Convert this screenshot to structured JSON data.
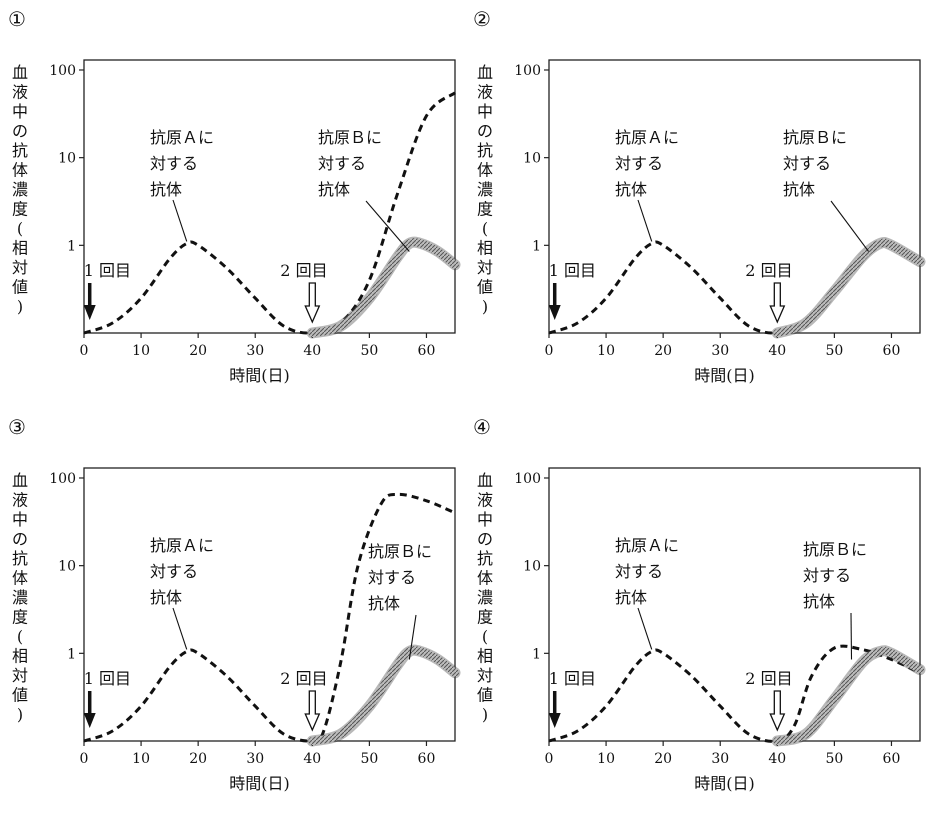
{
  "chart_data": [
    {
      "type": "line",
      "panel_number": "①",
      "ylabel": "血液中の抗体濃度(相対値)",
      "xlabel": "時間(日)",
      "x_ticks": [
        "0",
        "10",
        "20",
        "30",
        "40",
        "50",
        "60"
      ],
      "y_ticks": [
        {
          "value": 1,
          "label": "1"
        },
        {
          "value": 10,
          "label": "10"
        },
        {
          "value": 100,
          "label": "100"
        }
      ],
      "xlim": [
        0,
        65
      ],
      "ylim_log": [
        0.1,
        130
      ],
      "y_scale": "log",
      "annotations": {
        "first_dose": "1 回目",
        "second_dose": "2 回目",
        "antibody_a": [
          "抗原Ａに",
          "対する",
          "抗体"
        ],
        "antibody_b": [
          "抗原Ｂに",
          "対する",
          "抗体"
        ]
      },
      "first_dose_day": 1,
      "second_dose_day": 40,
      "series": [
        {
          "style": "dashed",
          "x": [
            0,
            5,
            10,
            15,
            18,
            20,
            25,
            30,
            35,
            40,
            45,
            50,
            55,
            60,
            65
          ],
          "y": [
            0.1,
            0.13,
            0.25,
            0.7,
            1.05,
            1.0,
            0.55,
            0.25,
            0.12,
            0.1,
            0.13,
            0.4,
            4,
            30,
            55
          ]
        },
        {
          "style": "hatched",
          "x": [
            40,
            45,
            50,
            55,
            57,
            59,
            62,
            65
          ],
          "y": [
            0.1,
            0.12,
            0.25,
            0.75,
            1.05,
            1.05,
            0.85,
            0.6
          ]
        }
      ],
      "label_a_pointer_x": 18,
      "label_b_pointer_x": 57
    },
    {
      "type": "line",
      "panel_number": "②",
      "ylabel": "血液中の抗体濃度(相対値)",
      "xlabel": "時間(日)",
      "x_ticks": [
        "0",
        "10",
        "20",
        "30",
        "40",
        "50",
        "60"
      ],
      "y_ticks": [
        {
          "value": 1,
          "label": "1"
        },
        {
          "value": 10,
          "label": "10"
        },
        {
          "value": 100,
          "label": "100"
        }
      ],
      "xlim": [
        0,
        65
      ],
      "ylim_log": [
        0.1,
        130
      ],
      "y_scale": "log",
      "annotations": {
        "first_dose": "1 回目",
        "second_dose": "2 回目",
        "antibody_a": [
          "抗原Ａに",
          "対する",
          "抗体"
        ],
        "antibody_b": [
          "抗原Ｂに",
          "対する",
          "抗体"
        ]
      },
      "first_dose_day": 1,
      "second_dose_day": 40,
      "series": [
        {
          "style": "dashed",
          "x": [
            0,
            5,
            10,
            15,
            18,
            20,
            25,
            30,
            35,
            40,
            45,
            50,
            55,
            58,
            60,
            65
          ],
          "y": [
            0.1,
            0.13,
            0.25,
            0.7,
            1.05,
            1.0,
            0.55,
            0.25,
            0.12,
            0.1,
            0.13,
            0.3,
            0.75,
            1.05,
            1.0,
            0.65
          ]
        },
        {
          "style": "hatched",
          "x": [
            40,
            45,
            50,
            55,
            58,
            60,
            65
          ],
          "y": [
            0.1,
            0.13,
            0.3,
            0.75,
            1.05,
            1.0,
            0.65
          ]
        }
      ],
      "label_a_pointer_x": 18,
      "label_b_pointer_x": 56
    },
    {
      "type": "line",
      "panel_number": "③",
      "ylabel": "血液中の抗体濃度(相対値)",
      "xlabel": "時間(日)",
      "x_ticks": [
        "0",
        "10",
        "20",
        "30",
        "40",
        "50",
        "60"
      ],
      "y_ticks": [
        {
          "value": 1,
          "label": "1"
        },
        {
          "value": 10,
          "label": "10"
        },
        {
          "value": 100,
          "label": "100"
        }
      ],
      "xlim": [
        0,
        65
      ],
      "ylim_log": [
        0.1,
        130
      ],
      "y_scale": "log",
      "annotations": {
        "first_dose": "1 回目",
        "second_dose": "2 回目",
        "antibody_a": [
          "抗原Ａに",
          "対する",
          "抗体"
        ],
        "antibody_b": [
          "抗原Ｂに",
          "対する",
          "抗体"
        ]
      },
      "first_dose_day": 1,
      "second_dose_day": 40,
      "series": [
        {
          "style": "dashed",
          "x": [
            0,
            5,
            10,
            15,
            18,
            20,
            25,
            30,
            35,
            40,
            42,
            45,
            48,
            52,
            55,
            60,
            65
          ],
          "y": [
            0.1,
            0.13,
            0.25,
            0.7,
            1.05,
            1.0,
            0.55,
            0.25,
            0.12,
            0.1,
            0.13,
            0.8,
            10,
            50,
            65,
            55,
            40
          ]
        },
        {
          "style": "hatched",
          "x": [
            40,
            45,
            50,
            55,
            57,
            59,
            62,
            65
          ],
          "y": [
            0.1,
            0.12,
            0.25,
            0.75,
            1.05,
            1.05,
            0.85,
            0.6
          ]
        }
      ],
      "label_a_pointer_x": 18,
      "label_b_pointer_x": 57
    },
    {
      "type": "line",
      "panel_number": "④",
      "ylabel": "血液中の抗体濃度(相対値)",
      "xlabel": "時間(日)",
      "x_ticks": [
        "0",
        "10",
        "20",
        "30",
        "40",
        "50",
        "60"
      ],
      "y_ticks": [
        {
          "value": 1,
          "label": "1"
        },
        {
          "value": 10,
          "label": "10"
        },
        {
          "value": 100,
          "label": "100"
        }
      ],
      "xlim": [
        0,
        65
      ],
      "ylim_log": [
        0.1,
        130
      ],
      "y_scale": "log",
      "annotations": {
        "first_dose": "1 回目",
        "second_dose": "2 回目",
        "antibody_a": [
          "抗原Ａに",
          "対する",
          "抗体"
        ],
        "antibody_b": [
          "抗原Ｂに",
          "対する",
          "抗体"
        ]
      },
      "first_dose_day": 1,
      "second_dose_day": 40,
      "series": [
        {
          "style": "dashed",
          "x": [
            0,
            5,
            10,
            15,
            18,
            20,
            25,
            30,
            35,
            40,
            43,
            46,
            50,
            55,
            60,
            65
          ],
          "y": [
            0.1,
            0.13,
            0.25,
            0.7,
            1.05,
            1.0,
            0.55,
            0.25,
            0.12,
            0.1,
            0.15,
            0.55,
            1.15,
            1.1,
            0.85,
            0.6
          ]
        },
        {
          "style": "hatched",
          "x": [
            40,
            45,
            50,
            55,
            58,
            60,
            65
          ],
          "y": [
            0.1,
            0.12,
            0.3,
            0.8,
            1.05,
            1.0,
            0.65
          ]
        }
      ],
      "label_a_pointer_x": 18,
      "label_b_pointer_x": 53
    }
  ]
}
